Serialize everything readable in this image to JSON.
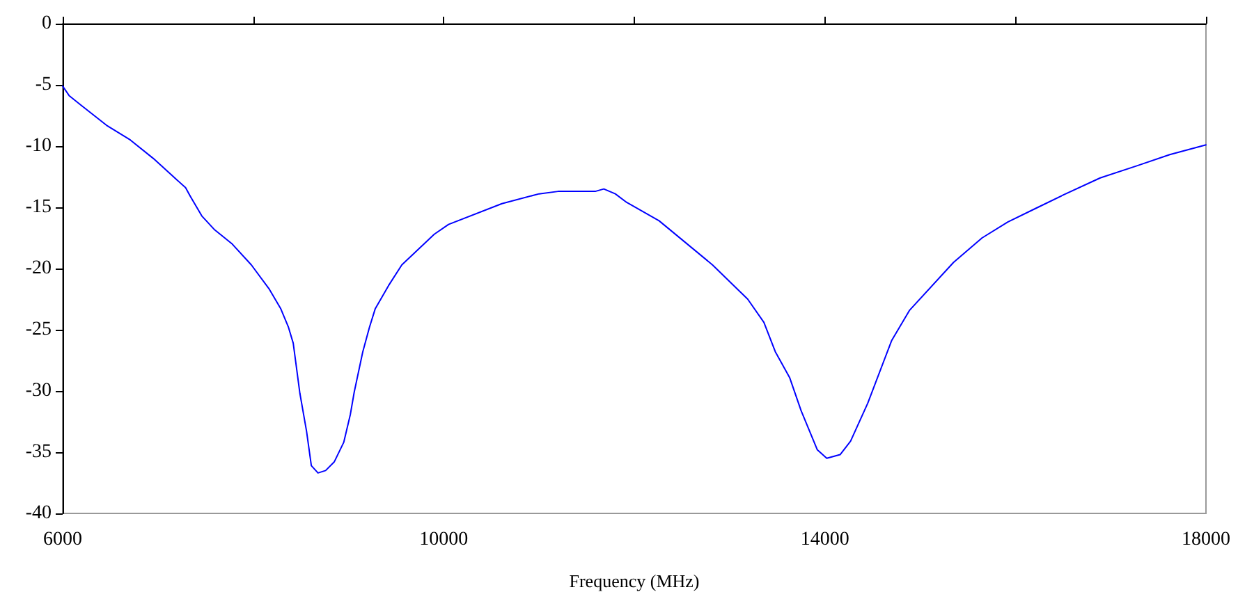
{
  "chart_data": {
    "type": "line",
    "xlabel": "Frequency (MHz)",
    "x": [
      6000,
      6070,
      6200,
      6460,
      6710,
      6950,
      7290,
      7340,
      7460,
      7590,
      7780,
      7980,
      8170,
      8290,
      8370,
      8420,
      8490,
      8560,
      8610,
      8680,
      8760,
      8850,
      8950,
      9020,
      9060,
      9150,
      9220,
      9280,
      9420,
      9560,
      9900,
      10050,
      10610,
      11000,
      11200,
      11590,
      11680,
      11800,
      11920,
      12260,
      12820,
      13190,
      13360,
      13480,
      13630,
      13750,
      13920,
      14020,
      14160,
      14270,
      14450,
      14700,
      14890,
      15350,
      15650,
      15920,
      16210,
      16500,
      16890,
      17280,
      17620,
      18000
    ],
    "series": [
      {
        "color": "#0000ff",
        "values": [
          -5.1,
          -5.9,
          -6.7,
          -8.3,
          -9.5,
          -11.0,
          -13.4,
          -14.1,
          -15.7,
          -16.8,
          -18.0,
          -19.7,
          -21.7,
          -23.3,
          -24.8,
          -26.1,
          -30.2,
          -33.3,
          -36.1,
          -36.7,
          -36.5,
          -35.8,
          -34.2,
          -31.9,
          -30.1,
          -26.8,
          -24.8,
          -23.3,
          -21.4,
          -19.7,
          -17.2,
          -16.4,
          -14.7,
          -13.9,
          -13.7,
          -13.7,
          -13.5,
          -13.9,
          -14.6,
          -16.1,
          -19.7,
          -22.5,
          -24.4,
          -26.8,
          -28.9,
          -31.6,
          -34.8,
          -35.5,
          -35.2,
          -34.1,
          -31.0,
          -25.9,
          -23.4,
          -19.5,
          -17.5,
          -16.2,
          -15.1,
          -14.0,
          -12.6,
          -11.6,
          -10.7,
          -9.9
        ]
      }
    ],
    "xlim": [
      6000,
      18000
    ],
    "xticks": [
      6000,
      {
        "value": 8000,
        "label": null
      },
      10000,
      {
        "value": 12000,
        "label": null
      },
      14000,
      {
        "value": 16000,
        "label": null
      },
      18000
    ],
    "ylim": [
      -40,
      0
    ],
    "yticks": [
      -40,
      -35,
      -30,
      -25,
      -20,
      -15,
      -10,
      -5,
      0
    ],
    "grid": false,
    "marker": "none",
    "line_style": "solid"
  }
}
